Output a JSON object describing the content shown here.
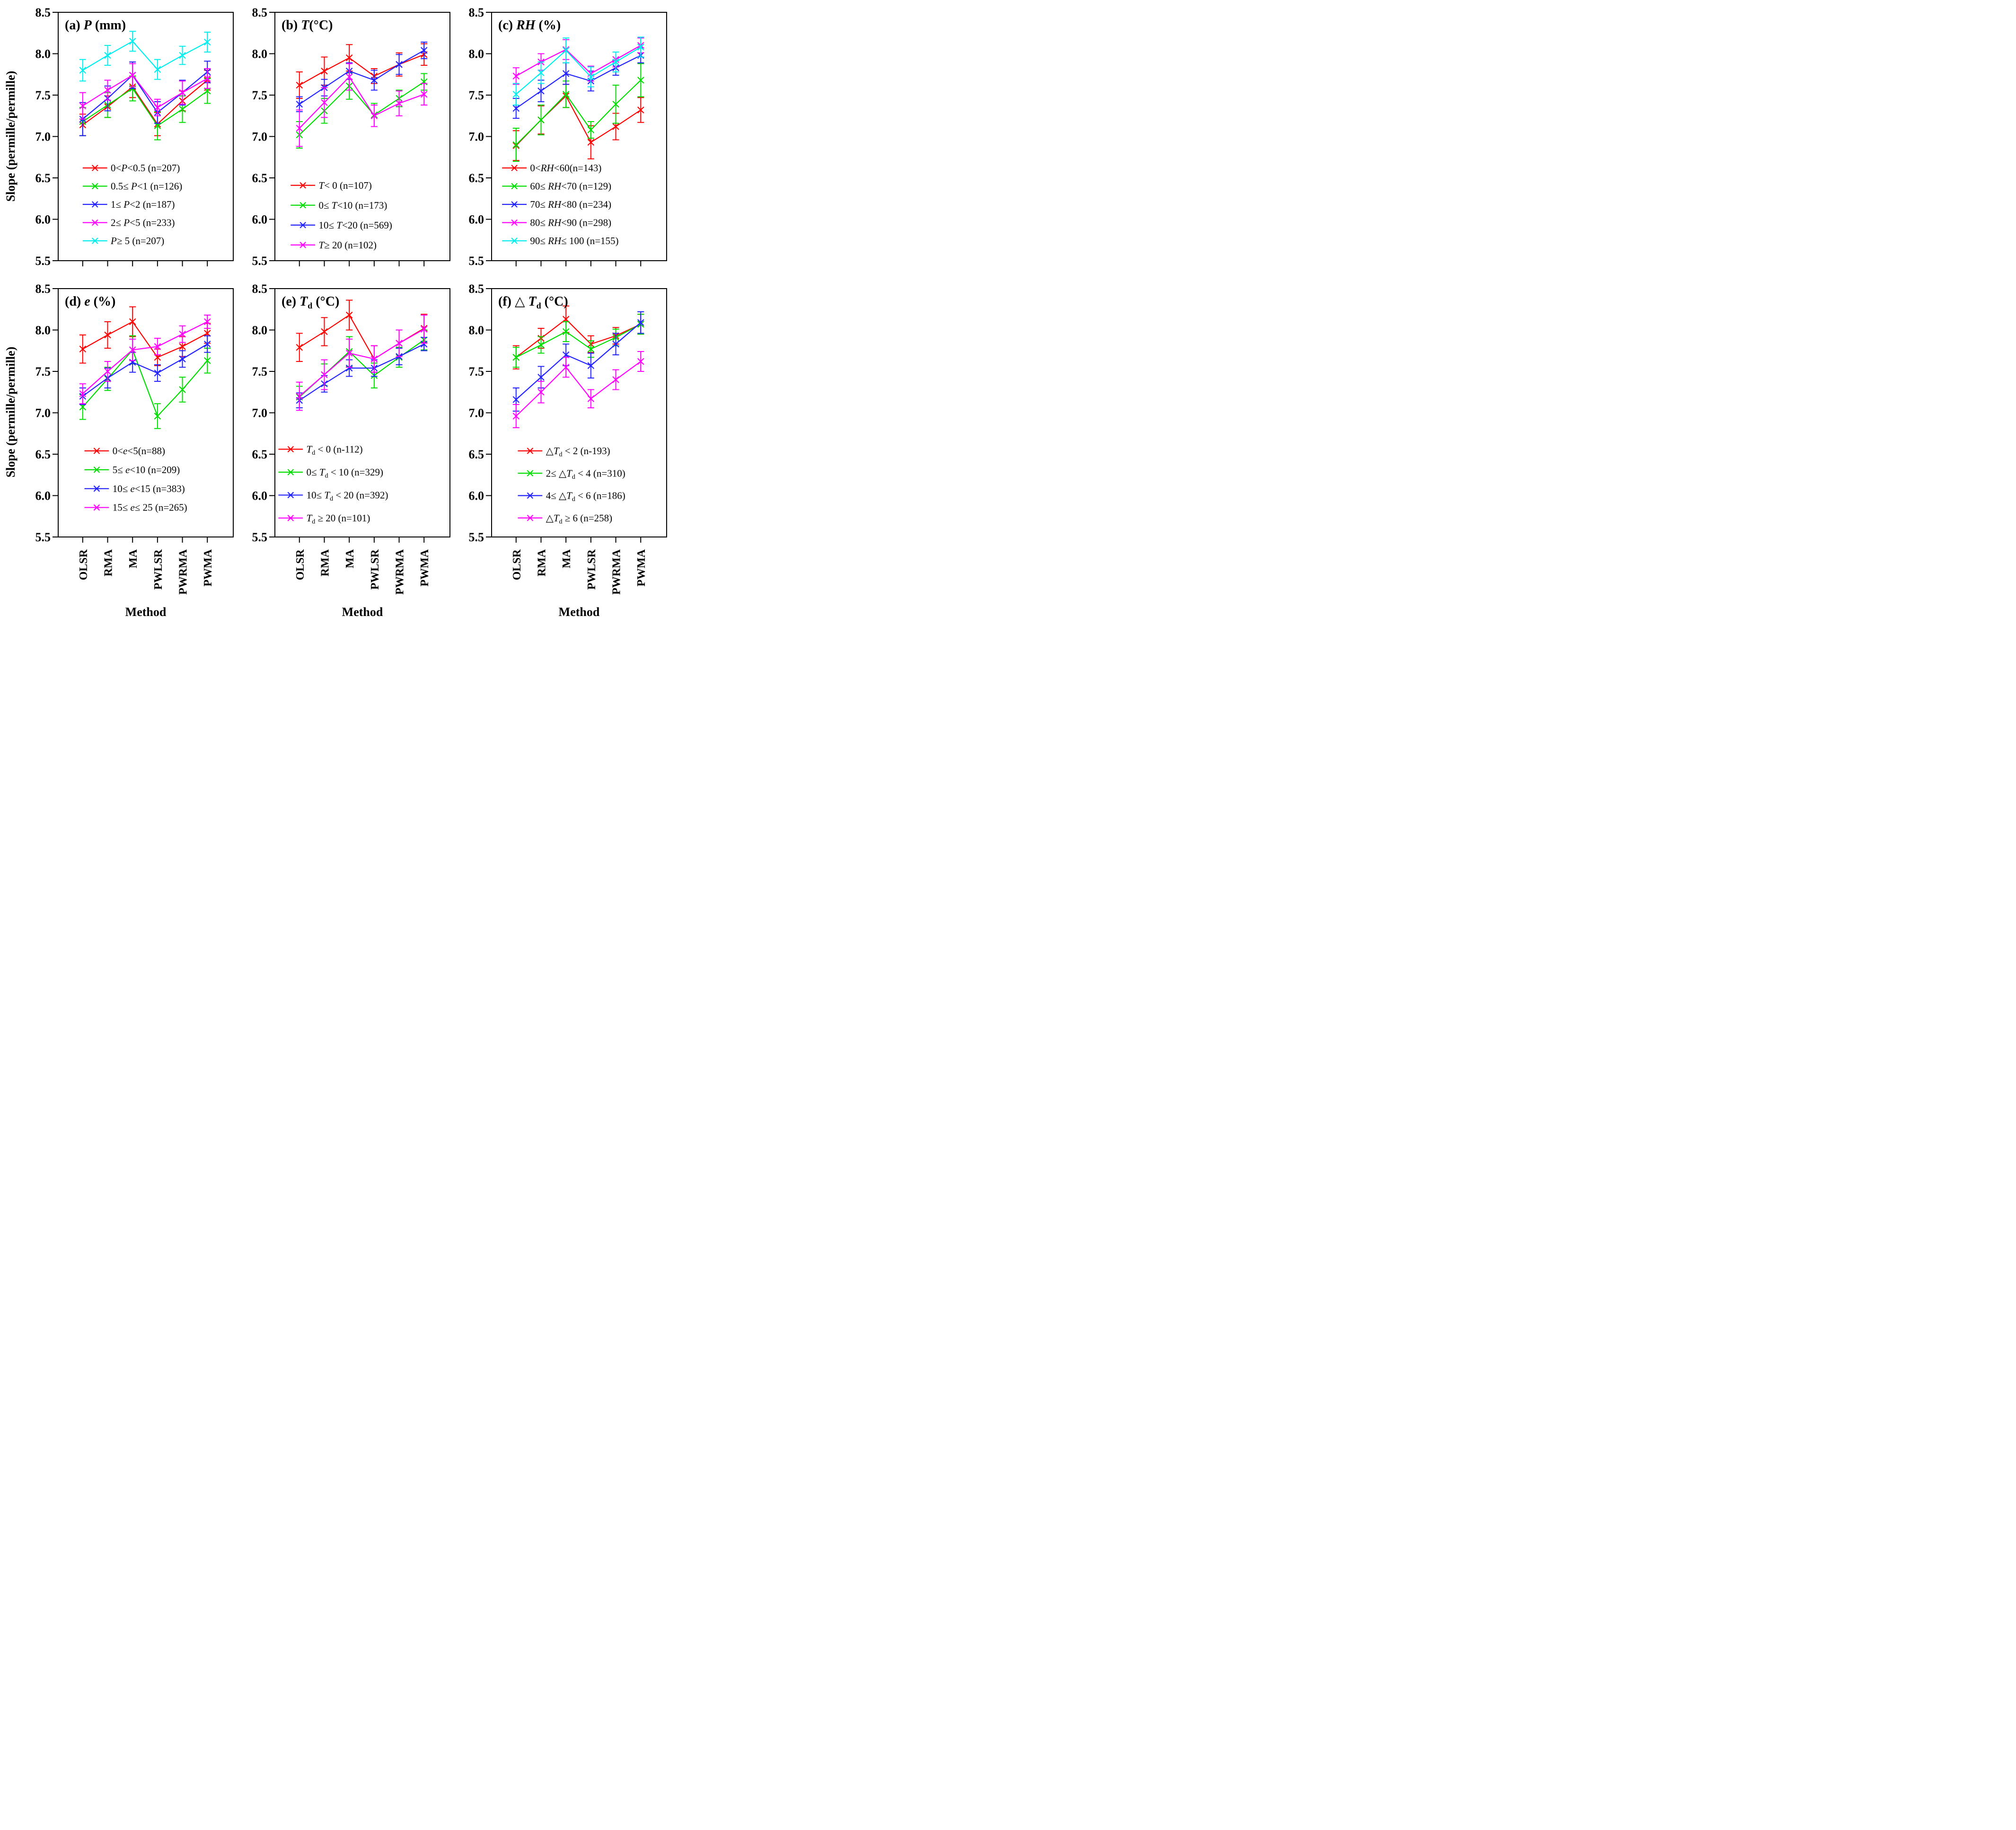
{
  "figure": {
    "y_axis_label": "Slope (permille/permille)",
    "x_axis_label": "Method",
    "background": "#ffffff",
    "frame_color": "#000000"
  },
  "chart_data": {
    "type": "line",
    "marker": "x-cross-with-error-bars",
    "categories": [
      "OLSR",
      "RMA",
      "MA",
      "PWLSR",
      "PWRMA",
      "PWMA"
    ],
    "xlabel": "Method",
    "ylabel": "Slope (permille/permille)",
    "ylim": [
      5.5,
      8.5
    ],
    "yticks": [
      5.5,
      6.0,
      6.5,
      7.0,
      7.5,
      8.0,
      8.5
    ],
    "grid": false,
    "legend_position": "inside-lower-left-of-each-panel",
    "panels": [
      {
        "id": "a",
        "row": 1,
        "title": "(a) *P* (mm)",
        "legend": {
          "y_start": 6.62,
          "dy": 0.22,
          "line_x": [
            0.14,
            0.28
          ],
          "text_x": 0.3
        },
        "series": [
          {
            "label": "0<*P*<0.5 (n=207)",
            "color": "#ff0000",
            "values": [
              7.14,
              7.36,
              7.6,
              7.15,
              7.43,
              7.68
            ],
            "errors": [
              0.13,
              0.13,
              0.13,
              0.14,
              0.12,
              0.12
            ]
          },
          {
            "label": "0.5≤ *P*<1 (n=126)",
            "color": "#00dd00",
            "values": [
              7.18,
              7.38,
              7.58,
              7.13,
              7.33,
              7.55
            ],
            "errors": [
              0.17,
              0.15,
              0.15,
              0.17,
              0.16,
              0.15
            ]
          },
          {
            "label": "1≤ *P*<2 (n=187)",
            "color": "#2222ff",
            "values": [
              7.21,
              7.46,
              7.74,
              7.29,
              7.53,
              7.78
            ],
            "errors": [
              0.2,
              0.15,
              0.16,
              0.13,
              0.15,
              0.13
            ]
          },
          {
            "label": "2≤ *P*<5 (n=233)",
            "color": "#ff00ff",
            "values": [
              7.37,
              7.56,
              7.74,
              7.35,
              7.53,
              7.7
            ],
            "errors": [
              0.16,
              0.12,
              0.14,
              0.1,
              0.14,
              0.12
            ]
          },
          {
            "label": "*P*≥ 5 (n=207)",
            "color": "#00eeee",
            "values": [
              7.8,
              7.98,
              8.15,
              7.81,
              7.98,
              8.14
            ],
            "errors": [
              0.13,
              0.12,
              0.12,
              0.12,
              0.11,
              0.12
            ]
          }
        ]
      },
      {
        "id": "b",
        "row": 1,
        "title": "(b) *T*(°C)",
        "legend": {
          "y_start": 6.41,
          "dy": 0.24,
          "line_x": [
            0.09,
            0.23
          ],
          "text_x": 0.25
        },
        "series": [
          {
            "label": "*T*< 0 (n=107)",
            "color": "#ff0000",
            "values": [
              7.62,
              7.79,
              7.95,
              7.73,
              7.87,
              7.99
            ],
            "errors": [
              0.16,
              0.17,
              0.16,
              0.09,
              0.14,
              0.13
            ]
          },
          {
            "label": "0≤ *T*<10 (n=173)",
            "color": "#00dd00",
            "values": [
              7.02,
              7.31,
              7.61,
              7.26,
              7.46,
              7.66
            ],
            "errors": [
              0.16,
              0.15,
              0.16,
              0.14,
              0.1,
              0.1
            ]
          },
          {
            "label": "10≤ *T*<20 (n=569)",
            "color": "#2222ff",
            "values": [
              7.39,
              7.59,
              7.79,
              7.68,
              7.87,
              8.04
            ],
            "errors": [
              0.09,
              0.1,
              0.1,
              0.12,
              0.12,
              0.1
            ]
          },
          {
            "label": "*T*≥ 20 (n=102)",
            "color": "#ff00ff",
            "values": [
              7.1,
              7.41,
              7.72,
              7.25,
              7.4,
              7.51
            ],
            "errors": [
              0.22,
              0.18,
              0.16,
              0.13,
              0.15,
              0.13
            ]
          }
        ]
      },
      {
        "id": "c",
        "row": 1,
        "title": "(c) *RH* (%)",
        "legend": {
          "y_start": 6.62,
          "dy": 0.22,
          "line_x": [
            0.06,
            0.2
          ],
          "text_x": 0.22
        },
        "series": [
          {
            "label": "0<*RH*<60(n=143)",
            "color": "#ff0000",
            "values": [
              6.89,
              7.2,
              7.49,
              6.93,
              7.12,
              7.32
            ],
            "errors": [
              0.18,
              0.17,
              0.14,
              0.2,
              0.16,
              0.15
            ]
          },
          {
            "label": "60≤ *RH*<70 (n=129)",
            "color": "#00dd00",
            "values": [
              6.9,
              7.2,
              7.51,
              7.08,
              7.39,
              7.68
            ],
            "errors": [
              0.2,
              0.18,
              0.16,
              0.1,
              0.23,
              0.2
            ]
          },
          {
            "label": "70≤ *RH*<80 (n=234)",
            "color": "#2222ff",
            "values": [
              7.34,
              7.55,
              7.76,
              7.67,
              7.83,
              7.98
            ],
            "errors": [
              0.12,
              0.13,
              0.13,
              0.12,
              0.09,
              0.09
            ]
          },
          {
            "label": "80≤ *RH*<90 (n=298)",
            "color": "#ff00ff",
            "values": [
              7.73,
              7.9,
              8.05,
              7.76,
              7.93,
              8.1
            ],
            "errors": [
              0.1,
              0.1,
              0.12,
              0.09,
              0.09,
              0.09
            ]
          },
          {
            "label": "90≤ *RH*≤ 100 (n=155)",
            "color": "#00eeee",
            "values": [
              7.51,
              7.77,
              8.04,
              7.72,
              7.9,
              8.08
            ],
            "errors": [
              0.13,
              0.13,
              0.15,
              0.12,
              0.12,
              0.12
            ]
          }
        ]
      },
      {
        "id": "d",
        "row": 2,
        "title": "(d) *e* (%)",
        "legend": {
          "y_start": 6.54,
          "dy": 0.228,
          "line_x": [
            0.15,
            0.29
          ],
          "text_x": 0.31
        },
        "series": [
          {
            "label": "0<*e*<5(n=88)",
            "color": "#ff0000",
            "values": [
              7.77,
              7.94,
              8.1,
              7.67,
              7.8,
              7.96
            ],
            "errors": [
              0.17,
              0.16,
              0.18,
              0.1,
              0.12,
              0.12
            ]
          },
          {
            "label": "5≤ *e*<10 (n=209)",
            "color": "#00dd00",
            "values": [
              7.07,
              7.41,
              7.76,
              6.96,
              7.28,
              7.63
            ],
            "errors": [
              0.15,
              0.14,
              0.17,
              0.15,
              0.15,
              0.15
            ]
          },
          {
            "label": "10≤ *e*<15 (n=383)",
            "color": "#2222ff",
            "values": [
              7.2,
              7.42,
              7.61,
              7.48,
              7.65,
              7.83
            ],
            "errors": [
              0.1,
              0.12,
              0.12,
              0.1,
              0.1,
              0.1
            ]
          },
          {
            "label": "15≤ *e*≤ 25 (n=265)",
            "color": "#ff00ff",
            "values": [
              7.23,
              7.5,
              7.76,
              7.8,
              7.95,
              8.1
            ],
            "errors": [
              0.12,
              0.12,
              0.13,
              0.1,
              0.1,
              0.08
            ]
          }
        ]
      },
      {
        "id": "e",
        "row": 2,
        "title": "(e) *T*_d_ (°C)",
        "legend": {
          "y_start": 6.56,
          "dy": 0.277,
          "line_x": [
            0.02,
            0.16
          ],
          "text_x": 0.18
        },
        "series": [
          {
            "label": "*T*_d_ < 0 (n-112)",
            "color": "#ff0000",
            "values": [
              7.79,
              7.98,
              8.18,
              7.65,
              7.84,
              8.02
            ],
            "errors": [
              0.17,
              0.17,
              0.18,
              0.16,
              0.16,
              0.17
            ]
          },
          {
            "label": "0≤ *T*_d_ < 10 (n=329)",
            "color": "#00dd00",
            "values": [
              7.19,
              7.46,
              7.74,
              7.45,
              7.67,
              7.88
            ],
            "errors": [
              0.13,
              0.13,
              0.18,
              0.15,
              0.12,
              0.12
            ]
          },
          {
            "label": "10≤ *T*_d_ < 20 (n=392)",
            "color": "#2222ff",
            "values": [
              7.15,
              7.35,
              7.54,
              7.54,
              7.68,
              7.83
            ],
            "errors": [
              0.09,
              0.1,
              0.1,
              0.1,
              0.1,
              0.08
            ]
          },
          {
            "label": "*T*_d_ ≥ 20 (n=101)",
            "color": "#ff00ff",
            "values": [
              7.2,
              7.46,
              7.72,
              7.65,
              7.84,
              8.01
            ],
            "errors": [
              0.17,
              0.18,
              0.17,
              0.16,
              0.16,
              0.17
            ]
          }
        ]
      },
      {
        "id": "f",
        "row": 2,
        "title": "(f) △ *T*_d_ (°C)",
        "legend": {
          "y_start": 6.54,
          "dy": 0.27,
          "line_x": [
            0.15,
            0.29
          ],
          "text_x": 0.31
        },
        "series": [
          {
            "label": "△*T*_d_ < 2 (n-193)",
            "color": "#ff0000",
            "values": [
              7.67,
              7.9,
              8.13,
              7.83,
              7.93,
              8.07
            ],
            "errors": [
              0.14,
              0.12,
              0.16,
              0.1,
              0.1,
              0.12
            ]
          },
          {
            "label": "2≤ △*T*_d_ < 4 (n=310)",
            "color": "#00dd00",
            "values": [
              7.67,
              7.82,
              7.98,
              7.77,
              7.91,
              8.07
            ],
            "errors": [
              0.12,
              0.1,
              0.12,
              0.1,
              0.1,
              0.12
            ]
          },
          {
            "label": "4≤ △*T*_d_ < 6 (n=186)",
            "color": "#2222ff",
            "values": [
              7.16,
              7.43,
              7.7,
              7.57,
              7.83,
              8.09
            ],
            "errors": [
              0.14,
              0.13,
              0.13,
              0.15,
              0.13,
              0.13
            ]
          },
          {
            "label": "△*T*_d_ ≥ 6 (n=258)",
            "color": "#ff00ff",
            "values": [
              6.96,
              7.25,
              7.55,
              7.17,
              7.4,
              7.62
            ],
            "errors": [
              0.14,
              0.13,
              0.12,
              0.11,
              0.12,
              0.12
            ]
          }
        ]
      }
    ]
  }
}
